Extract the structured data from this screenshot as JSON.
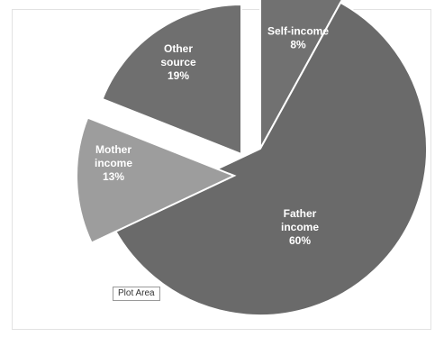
{
  "chart_data": {
    "type": "pie",
    "slices": [
      {
        "lines": [
          "Self-income",
          "8%"
        ],
        "value": 8,
        "color": "#717171"
      },
      {
        "lines": [
          "Father",
          "income",
          "60%"
        ],
        "value": 60,
        "color": "#6a6a6a"
      },
      {
        "lines": [
          "Mother",
          "income",
          "13%"
        ],
        "value": 13,
        "color": "#9d9d9d"
      },
      {
        "lines": [
          "Other",
          "source",
          "19%"
        ],
        "value": 19,
        "color": "#6f6f6f"
      }
    ],
    "title": "",
    "legend": "none",
    "exploded": true,
    "start_angle_deg": 0,
    "direction": "clockwise"
  },
  "tooltip": {
    "label": "Plot Area"
  }
}
